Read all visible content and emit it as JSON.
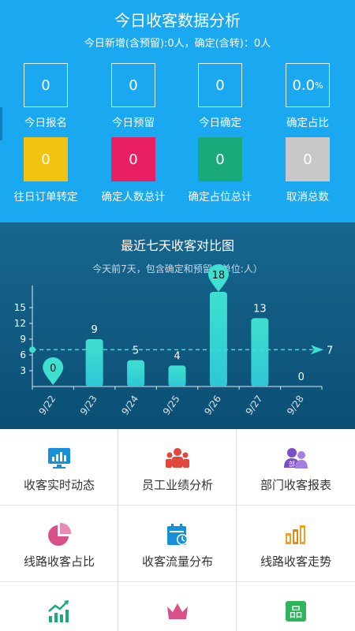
{
  "header": {
    "title": "今日收客数据分析",
    "subtitle": "今日新增(含预留):0人，确定(含转)：0人"
  },
  "stats_row1": [
    {
      "value": "0",
      "label": "今日报名"
    },
    {
      "value": "0",
      "label": "今日预留"
    },
    {
      "value": "0",
      "label": "今日确定"
    },
    {
      "value": "0.0",
      "unit": "%",
      "label": "确定占比"
    }
  ],
  "stats_row2": [
    {
      "value": "0",
      "label": "往日订单转定",
      "color": "#f2c311"
    },
    {
      "value": "0",
      "label": "确定人数总计",
      "color": "#e91e63"
    },
    {
      "value": "0",
      "label": "确定占位总计",
      "color": "#1aa97b"
    },
    {
      "value": "0",
      "label": "取消总数",
      "color": "#c8c8c8"
    }
  ],
  "chart": {
    "title": "最近七天收客对比图",
    "subtitle": "今天前7天，包含确定和预留",
    "subtitle_tail": "（单位:人）"
  },
  "chart_data": {
    "type": "bar",
    "categories": [
      "9/22",
      "9/23",
      "9/24",
      "9/25",
      "9/26",
      "9/27",
      "9/28"
    ],
    "values": [
      0,
      9,
      5,
      4,
      18,
      13,
      0
    ],
    "yticks": [
      3,
      6,
      9,
      12,
      15
    ],
    "ylim": [
      0,
      18
    ],
    "average_line": 7,
    "max_marker": 18,
    "min_marker": 0,
    "bar_color": "#3ee0cf"
  },
  "menu": [
    {
      "label": "收客实时动态",
      "icon": "monitor-chart-icon"
    },
    {
      "label": "员工业绩分析",
      "icon": "people-group-icon"
    },
    {
      "label": "部门收客报表",
      "icon": "department-users-icon"
    },
    {
      "label": "线路收客占比",
      "icon": "pie-chart-icon"
    },
    {
      "label": "收客流量分布",
      "icon": "calendar-flow-icon"
    },
    {
      "label": "线路收客走势",
      "icon": "bar-trend-icon"
    },
    {
      "label": "",
      "icon": "trend-up-icon"
    },
    {
      "label": "",
      "icon": "crown-icon"
    },
    {
      "label": "",
      "icon": "product-icon"
    }
  ]
}
